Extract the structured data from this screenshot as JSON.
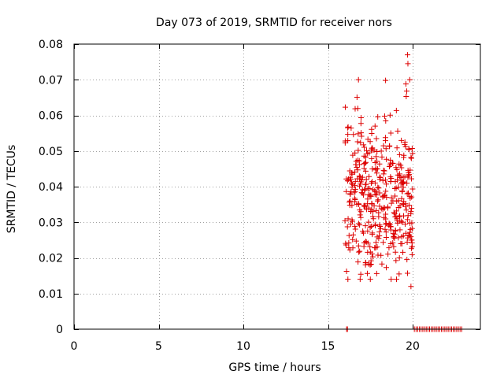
{
  "chart_data": {
    "type": "scatter",
    "title": "Day 073 of 2019, SRMTID for receiver nors",
    "xlabel": "GPS time / hours",
    "ylabel": "SRMTID / TECUs",
    "xlim": [
      0,
      24
    ],
    "ylim": [
      0,
      0.08
    ],
    "x_ticks": [
      0,
      5,
      10,
      15,
      20
    ],
    "x_tick_labels": [
      "0",
      "5",
      "10",
      "15",
      "20"
    ],
    "y_ticks": [
      0,
      0.01,
      0.02,
      0.03,
      0.04,
      0.05,
      0.06,
      0.07,
      0.08
    ],
    "y_tick_labels": [
      "0",
      "0.01",
      "0.02",
      "0.03",
      "0.04",
      "0.05",
      "0.06",
      "0.07",
      "0.08"
    ],
    "grid": true,
    "marker": "+",
    "color": "#dd0000",
    "series": [
      {
        "name": "SRMTID",
        "scatter_cluster": {
          "x_range": [
            16.0,
            20.0
          ],
          "y_range": [
            0.014,
            0.07
          ],
          "y_center": 0.038,
          "y_spread": 0.01,
          "count": 420
        },
        "points": [
          [
            16.1,
            0.0
          ],
          [
            16.15,
            0.0
          ],
          [
            16.8,
            0.07
          ],
          [
            18.4,
            0.0698
          ],
          [
            19.6,
            0.0688
          ],
          [
            19.65,
            0.0668
          ],
          [
            19.62,
            0.0653
          ],
          [
            19.7,
            0.077
          ],
          [
            19.72,
            0.0745
          ],
          [
            16.9,
            0.014
          ],
          [
            17.5,
            0.014
          ],
          [
            19.2,
            0.0155
          ],
          [
            19.3,
            0.024
          ],
          [
            19.4,
            0.03
          ],
          [
            19.9,
            0.012
          ],
          [
            19.95,
            0.025
          ],
          [
            19.9,
            0.033
          ]
        ],
        "zero_segment": {
          "x_start": 20.1,
          "x_end": 22.9,
          "step": 0.1,
          "y": 0.0
        }
      }
    ]
  }
}
